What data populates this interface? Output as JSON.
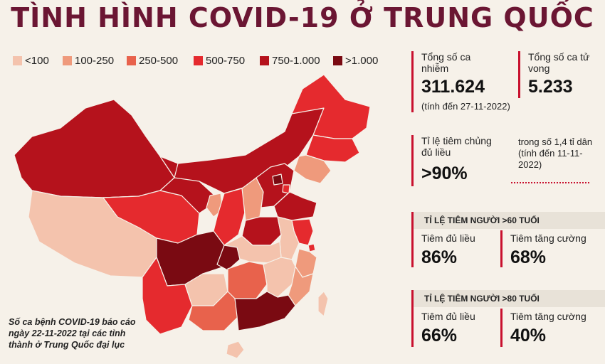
{
  "title": "TÌNH HÌNH COVID-19 Ở TRUNG QUỐC",
  "legend": [
    {
      "label": "<100",
      "color": "#f4c3ad"
    },
    {
      "label": "100-250",
      "color": "#ef9a7c"
    },
    {
      "label": "250-500",
      "color": "#e8624c"
    },
    {
      "label": "500-750",
      "color": "#e52a2e"
    },
    {
      "label": "750-1.000",
      "color": "#b5121c"
    },
    {
      "label": ">1.000",
      "color": "#7a0a12"
    }
  ],
  "caption": "Số ca bệnh COVID-19 báo cáo ngày 22-11-2022 tại các tỉnh thành ở Trung Quốc đại lục",
  "stats": {
    "cases_label": "Tổng số ca nhiễm",
    "cases_value": "311.624",
    "deaths_label": "Tổng số ca tử vong",
    "deaths_value": "5.233",
    "as_of": "(tính đến 27-11-2022)",
    "vacc_label": "Tỉ lệ tiêm chủng đủ liều",
    "vacc_value": ">90%",
    "vacc_note": "trong số 1,4 tỉ dân (tính đến 11-11-2022)",
    "over60_header": "TỈ LỆ TIÊM NGƯỜI >60 TUỔI",
    "over60_full_label": "Tiêm đủ liều",
    "over60_full_value": "86%",
    "over60_booster_label": "Tiêm tăng cường",
    "over60_booster_value": "68%",
    "over80_header": "TỈ LỆ TIÊM NGƯỜI >80 TUỔI",
    "over80_full_label": "Tiêm đủ liều",
    "over80_full_value": "66%",
    "over80_booster_label": "Tiêm tăng cường",
    "over80_booster_value": "40%"
  },
  "chart_data": {
    "type": "choropleth",
    "title": "TÌNH HÌNH COVID-19 Ở TRUNG QUỐC",
    "legend_position": "top-left",
    "categories": [
      "<100",
      "100-250",
      "250-500",
      "500-750",
      "750-1.000",
      ">1.000"
    ],
    "regions_by_category": [
      {
        "category": "<100",
        "color": "#f4c3ad",
        "count": 7
      },
      {
        "category": "100-250",
        "color": "#ef9a7c",
        "count": 5
      },
      {
        "category": "250-500",
        "color": "#e8624c",
        "count": 2
      },
      {
        "category": "500-750",
        "color": "#e52a2e",
        "count": 6
      },
      {
        "category": "750-1.000",
        "color": "#b5121c",
        "count": 8
      },
      {
        "category": ">1.000",
        "color": "#7a0a12",
        "count": 3
      }
    ]
  }
}
